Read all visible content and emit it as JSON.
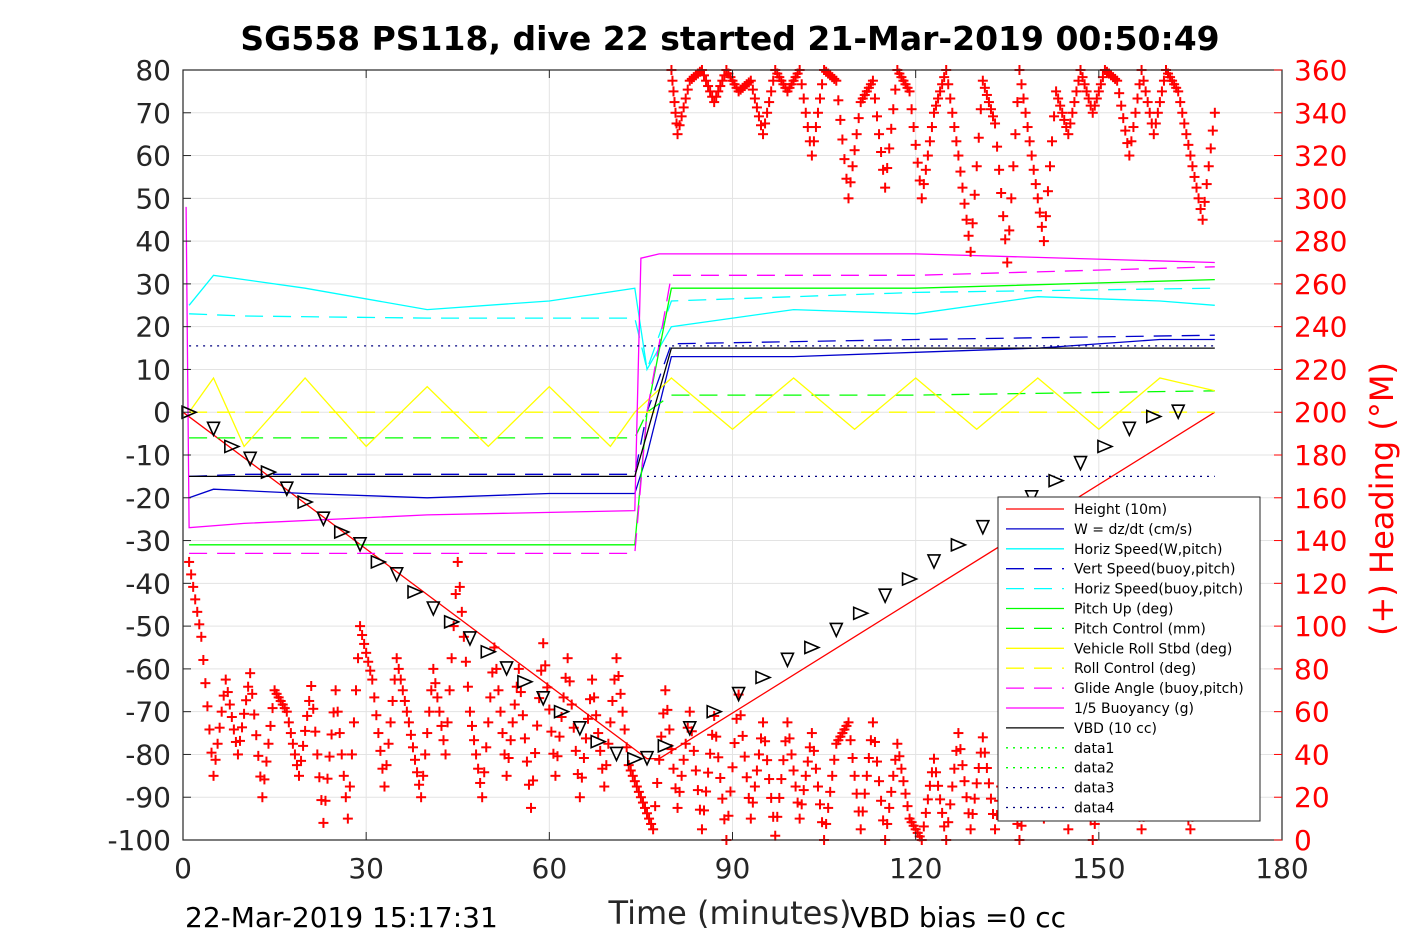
{
  "chart_data": {
    "type": "line",
    "title": "SG558 PS118, dive 22 started 21-Mar-2019 00:50:49",
    "xlabel": "Time (minutes)",
    "ylabel_right": "(+) Heading (°M)",
    "xlim": [
      0,
      180
    ],
    "ylim": [
      -100,
      80
    ],
    "ylim_right": [
      0,
      360
    ],
    "x_ticks": [
      "0",
      "30",
      "60",
      "90",
      "120",
      "150",
      "180"
    ],
    "y_ticks": [
      "80",
      "70",
      "60",
      "50",
      "40",
      "30",
      "20",
      "10",
      "0",
      "-10",
      "-20",
      "-30",
      "-40",
      "-50",
      "-60",
      "-70",
      "-80",
      "-90",
      "-100"
    ],
    "y_ticks_right": [
      "360",
      "340",
      "320",
      "300",
      "280",
      "260",
      "240",
      "220",
      "200",
      "180",
      "160",
      "140",
      "120",
      "100",
      "80",
      "60",
      "40",
      "20",
      "0"
    ],
    "grid": true,
    "legend_position": "lower-right",
    "footer_left": "22-Mar-2019 15:17:31",
    "footer_right": "VBD bias =0 cc",
    "series": [
      {
        "name": "Height (10m)",
        "color": "#ff0000",
        "style": "solid",
        "x": [
          0,
          76,
          78,
          169
        ],
        "y": [
          0,
          -81,
          -81,
          0
        ]
      },
      {
        "name": "W = dz/dt (cm/s)",
        "color": "#0000cc",
        "style": "solid",
        "x": [
          1,
          5,
          20,
          40,
          60,
          74,
          76,
          80,
          100,
          120,
          140,
          160,
          169
        ],
        "y": [
          -20,
          -18,
          -19,
          -20,
          -19,
          -19,
          -10,
          13,
          13,
          14,
          15,
          17,
          17
        ]
      },
      {
        "name": "Horiz Speed(W,pitch)",
        "color": "#00ffff",
        "style": "solid",
        "x": [
          1,
          5,
          20,
          40,
          60,
          74,
          76,
          80,
          100,
          120,
          140,
          160,
          169
        ],
        "y": [
          25,
          32,
          29,
          24,
          26,
          29,
          10,
          20,
          24,
          23,
          27,
          26,
          25
        ]
      },
      {
        "name": "Vert Speed(buoy,pitch)",
        "color": "#0000cc",
        "style": "dashed",
        "x": [
          1,
          10,
          40,
          74,
          76,
          80,
          120,
          169
        ],
        "y": [
          -15,
          -14.5,
          -14.5,
          -14.5,
          0,
          16,
          17,
          18
        ]
      },
      {
        "name": "Horiz Speed(buoy,pitch)",
        "color": "#00ffff",
        "style": "dashed",
        "x": [
          1,
          10,
          40,
          74,
          76,
          80,
          120,
          169
        ],
        "y": [
          23,
          22.5,
          22,
          22,
          10,
          26,
          28,
          29
        ]
      },
      {
        "name": "Pitch Up (deg)",
        "color": "#00ff00",
        "style": "solid",
        "x": [
          1,
          10,
          40,
          74,
          76,
          80,
          120,
          169
        ],
        "y": [
          -31,
          -31,
          -31,
          -31,
          0,
          29,
          29,
          31
        ]
      },
      {
        "name": "Pitch Control (mm)",
        "color": "#00ff00",
        "style": "dashed",
        "x": [
          1,
          10,
          40,
          74,
          76,
          80,
          120,
          169
        ],
        "y": [
          -6,
          -6,
          -6,
          -6,
          0,
          4,
          4,
          5
        ]
      },
      {
        "name": "Vehicle Roll Stbd (deg)",
        "color": "#ffff00",
        "style": "solid",
        "x": [
          1,
          5,
          10,
          20,
          30,
          40,
          50,
          60,
          70,
          74,
          80,
          90,
          100,
          110,
          120,
          130,
          140,
          150,
          160,
          169
        ],
        "y": [
          0,
          8,
          -8,
          8,
          -8,
          6,
          -8,
          6,
          -8,
          0,
          8,
          -4,
          8,
          -4,
          8,
          -4,
          8,
          -4,
          8,
          5
        ]
      },
      {
        "name": "Roll Control (deg)",
        "color": "#ffff00",
        "style": "dashed",
        "x": [
          1,
          169
        ],
        "y": [
          0,
          0
        ]
      },
      {
        "name": "Glide Angle (buoy,pitch)",
        "color": "#ff00ff",
        "style": "dashed",
        "x": [
          1,
          10,
          40,
          74,
          76,
          80,
          120,
          169
        ],
        "y": [
          -33,
          -33,
          -33,
          -33,
          0,
          32,
          32,
          34
        ]
      },
      {
        "name": "1/5 Buoyancy (g)",
        "color": "#ff00ff",
        "style": "solid",
        "x": [
          0.5,
          1,
          10,
          40,
          74,
          75,
          78,
          80,
          120,
          169
        ],
        "y": [
          48,
          -27,
          -26,
          -24,
          -23,
          36,
          37,
          37,
          37,
          35
        ]
      },
      {
        "name": "VBD (10 cc)",
        "color": "#000000",
        "style": "solid",
        "x": [
          1,
          74,
          80,
          120,
          169
        ],
        "y": [
          -15,
          -15,
          15,
          15,
          15
        ]
      },
      {
        "name": "data1",
        "color": "#00ff00",
        "style": "dotted",
        "x": [],
        "y": []
      },
      {
        "name": "data2",
        "color": "#00ff00",
        "style": "dotted",
        "x": [],
        "y": []
      },
      {
        "name": "data3",
        "color": "#000080",
        "style": "dotted",
        "x": [
          1,
          169
        ],
        "y": [
          15.5,
          15.5
        ]
      },
      {
        "name": "data4",
        "color": "#000080",
        "style": "dotted",
        "x": [
          76,
          169
        ],
        "y": [
          -15,
          -15
        ]
      }
    ],
    "heading": {
      "name": "(+) Heading (°M)",
      "color": "#ff0000",
      "axis": "right",
      "marker": "+",
      "x": [
        1,
        3,
        5,
        7,
        9,
        11,
        13,
        15,
        17,
        19,
        21,
        23,
        25,
        27,
        29,
        31,
        33,
        35,
        37,
        39,
        41,
        43,
        45,
        47,
        49,
        51,
        53,
        55,
        57,
        59,
        61,
        63,
        65,
        67,
        69,
        71,
        73,
        75,
        77,
        79,
        81,
        83,
        85,
        87,
        89,
        91,
        93,
        95,
        97,
        99,
        101,
        103,
        105,
        107,
        109,
        111,
        113,
        115,
        117,
        119,
        121,
        123,
        125,
        127,
        129,
        131,
        133,
        135,
        137,
        139,
        141,
        143,
        145,
        147,
        149,
        151,
        153,
        155,
        157,
        159,
        161,
        163,
        165,
        167,
        169
      ],
      "y": [
        130,
        95,
        30,
        75,
        40,
        78,
        20,
        70,
        60,
        30,
        72,
        8,
        70,
        10,
        100,
        75,
        25,
        85,
        55,
        20,
        80,
        40,
        130,
        60,
        20,
        90,
        30,
        80,
        15,
        92,
        30,
        85,
        20,
        75,
        25,
        85,
        35,
        20,
        5,
        70,
        15,
        60,
        5,
        58,
        0,
        68,
        10,
        55,
        2,
        55,
        10,
        50,
        0,
        45,
        55,
        5,
        55,
        0,
        45,
        10,
        0,
        38,
        0,
        50,
        5,
        48,
        5,
        45,
        0,
        40,
        10,
        50,
        5,
        55,
        0,
        45,
        20,
        40,
        5,
        40,
        50,
        30,
        5,
        40,
        35
      ]
    },
    "heading_high": {
      "x": [
        80,
        81,
        83,
        85,
        87,
        89,
        91,
        93,
        95,
        97,
        99,
        101,
        103,
        105,
        107,
        109,
        111,
        113,
        115,
        117,
        119,
        121,
        123,
        125,
        127,
        129,
        131,
        133,
        135,
        137,
        139,
        141,
        143,
        145,
        147,
        149,
        151,
        153,
        155,
        157,
        159,
        161,
        163,
        165,
        167,
        169
      ],
      "y": [
        360,
        330,
        355,
        360,
        345,
        360,
        350,
        355,
        330,
        360,
        350,
        360,
        320,
        360,
        355,
        300,
        345,
        355,
        305,
        360,
        350,
        300,
        340,
        360,
        320,
        275,
        355,
        335,
        270,
        360,
        320,
        280,
        350,
        330,
        360,
        340,
        360,
        355,
        320,
        360,
        330,
        360,
        350,
        320,
        290,
        340
      ]
    },
    "markers": {
      "name": "Height (10m) triangles",
      "color": "#000000",
      "x": [
        1,
        5,
        8,
        11,
        14,
        17,
        20,
        23,
        26,
        29,
        32,
        35,
        38,
        41,
        44,
        47,
        50,
        53,
        56,
        59,
        62,
        65,
        68,
        71,
        74,
        76,
        79,
        83,
        87,
        91,
        95,
        99,
        103,
        107,
        111,
        115,
        119,
        123,
        127,
        131,
        135,
        139,
        143,
        147,
        151,
        155,
        159,
        163
      ],
      "y": [
        0,
        -4,
        -8,
        -11,
        -14,
        -18,
        -21,
        -25,
        -28,
        -31,
        -35,
        -38,
        -42,
        -46,
        -49,
        -53,
        -56,
        -60,
        -63,
        -67,
        -70,
        -74,
        -77,
        -80,
        -81,
        -81,
        -78,
        -74,
        -70,
        -66,
        -62,
        -58,
        -55,
        -51,
        -47,
        -43,
        -39,
        -35,
        -31,
        -27,
        -23,
        -20,
        -16,
        -12,
        -8,
        -4,
        -1,
        0
      ]
    }
  }
}
